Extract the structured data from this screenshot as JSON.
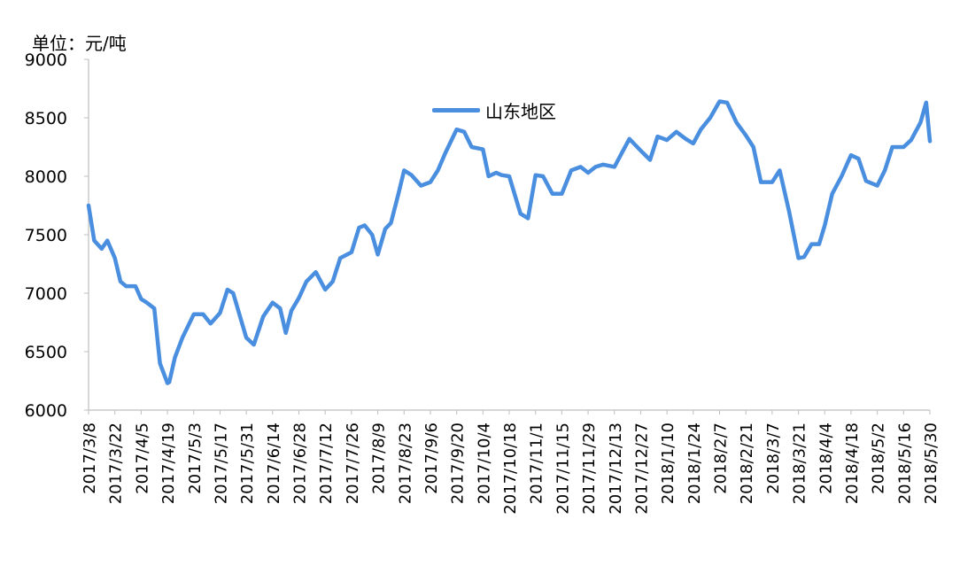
{
  "chart_data": {
    "type": "line",
    "unit_label": "单位：元/吨",
    "ylim": [
      6000,
      9000
    ],
    "y_ticks": [
      6000,
      6500,
      7000,
      7500,
      8000,
      8500,
      9000
    ],
    "x_tick_labels": [
      "2017/3/8",
      "2017/3/22",
      "2017/4/5",
      "2017/4/19",
      "2017/5/3",
      "2017/5/17",
      "2017/5/31",
      "2017/6/14",
      "2017/6/28",
      "2017/7/12",
      "2017/7/26",
      "2017/8/9",
      "2017/8/23",
      "2017/9/6",
      "2017/9/20",
      "2017/10/4",
      "2017/10/18",
      "2017/11/1",
      "2017/11/15",
      "2017/11/29",
      "2017/12/13",
      "2017/12/27",
      "2018/1/10",
      "2018/1/24",
      "2018/2/7",
      "2018/2/21",
      "2018/3/7",
      "2018/3/21",
      "2018/4/4",
      "2018/4/18",
      "2018/5/2",
      "2018/5/16",
      "2018/5/30"
    ],
    "grid": false,
    "legend_position": "top-center",
    "series": [
      {
        "name": "山东地区",
        "color": "#4a8ee0",
        "x": [
          "2017/3/8",
          "2017/3/11",
          "2017/3/15",
          "2017/3/18",
          "2017/3/22",
          "2017/3/25",
          "2017/3/28",
          "2017/4/2",
          "2017/4/5",
          "2017/4/8",
          "2017/4/12",
          "2017/4/15",
          "2017/4/19",
          "2017/4/20",
          "2017/4/23",
          "2017/4/27",
          "2017/5/3",
          "2017/5/8",
          "2017/5/12",
          "2017/5/17",
          "2017/5/21",
          "2017/5/24",
          "2017/5/31",
          "2017/6/4",
          "2017/6/9",
          "2017/6/14",
          "2017/6/18",
          "2017/6/21",
          "2017/6/24",
          "2017/6/28",
          "2017/7/2",
          "2017/7/7",
          "2017/7/12",
          "2017/7/16",
          "2017/7/20",
          "2017/7/26",
          "2017/7/30",
          "2017/8/2",
          "2017/8/6",
          "2017/8/9",
          "2017/8/13",
          "2017/8/16",
          "2017/8/20",
          "2017/8/23",
          "2017/8/27",
          "2017/9/1",
          "2017/9/6",
          "2017/9/10",
          "2017/9/14",
          "2017/9/20",
          "2017/9/24",
          "2017/9/28",
          "2017/10/4",
          "2017/10/7",
          "2017/10/11",
          "2017/10/14",
          "2017/10/18",
          "2017/10/24",
          "2017/10/28",
          "2017/11/1",
          "2017/11/5",
          "2017/11/10",
          "2017/11/15",
          "2017/11/20",
          "2017/11/25",
          "2017/11/29",
          "2017/12/3",
          "2017/12/7",
          "2017/12/13",
          "2017/12/17",
          "2017/12/21",
          "2017/12/27",
          "2018/1/1",
          "2018/1/5",
          "2018/1/10",
          "2018/1/15",
          "2018/1/20",
          "2018/1/24",
          "2018/1/28",
          "2018/2/2",
          "2018/2/7",
          "2018/2/11",
          "2018/2/16",
          "2018/2/21",
          "2018/2/25",
          "2018/3/1",
          "2018/3/7",
          "2018/3/11",
          "2018/3/16",
          "2018/3/21",
          "2018/3/24",
          "2018/3/28",
          "2018/4/1",
          "2018/4/4",
          "2018/4/8",
          "2018/4/13",
          "2018/4/18",
          "2018/4/22",
          "2018/4/26",
          "2018/5/2",
          "2018/5/6",
          "2018/5/10",
          "2018/5/16",
          "2018/5/20",
          "2018/5/25",
          "2018/5/28",
          "2018/5/30"
        ],
        "values": [
          7750,
          7450,
          7380,
          7450,
          7300,
          7100,
          7060,
          7060,
          6950,
          6920,
          6870,
          6400,
          6230,
          6240,
          6450,
          6620,
          6820,
          6820,
          6740,
          6830,
          7030,
          7000,
          6620,
          6560,
          6800,
          6920,
          6870,
          6660,
          6850,
          6960,
          7100,
          7180,
          7030,
          7100,
          7300,
          7350,
          7560,
          7580,
          7500,
          7330,
          7550,
          7600,
          7850,
          8050,
          8010,
          7920,
          7950,
          8050,
          8200,
          8400,
          8380,
          8250,
          8230,
          8000,
          8030,
          8010,
          8000,
          7680,
          7640,
          8010,
          8000,
          7850,
          7850,
          8050,
          8080,
          8030,
          8080,
          8100,
          8080,
          8200,
          8320,
          8220,
          8140,
          8340,
          8310,
          8380,
          8320,
          8280,
          8400,
          8500,
          8640,
          8630,
          8460,
          8350,
          8250,
          7950,
          7950,
          8050,
          7700,
          7300,
          7310,
          7420,
          7420,
          7580,
          7850,
          8000,
          8180,
          8150,
          7960,
          7920,
          8050,
          8250,
          8250,
          8310,
          8460,
          8630,
          8300
        ]
      }
    ]
  }
}
